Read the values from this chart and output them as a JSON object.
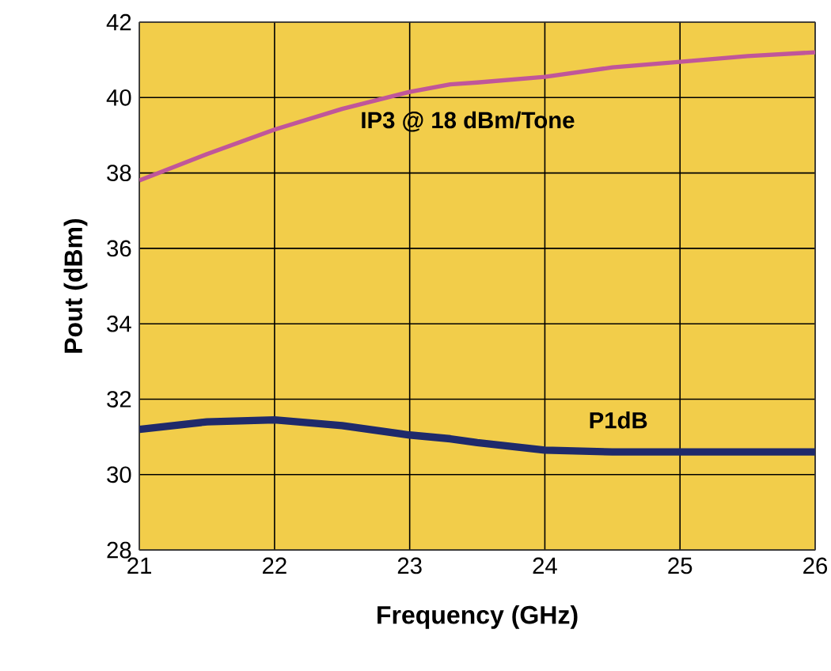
{
  "chart_data": {
    "type": "line",
    "xlabel": "Frequency (GHz)",
    "ylabel": "Pout (dBm)",
    "xlim": [
      21,
      26
    ],
    "ylim": [
      28,
      42
    ],
    "xticks": [
      21,
      22,
      23,
      24,
      25,
      26
    ],
    "yticks": [
      28,
      30,
      32,
      34,
      36,
      38,
      40,
      42
    ],
    "grid": true,
    "marker": "none",
    "line_style": "solid",
    "x": [
      21,
      21.5,
      22,
      22.5,
      23,
      23.3,
      23.5,
      24,
      24.5,
      25,
      25.5,
      26
    ],
    "series": [
      {
        "name": "IP3 @ 18 dBm/Tone",
        "color": "#c0569a",
        "values": [
          37.8,
          38.5,
          39.15,
          39.7,
          40.15,
          40.35,
          40.4,
          40.55,
          40.8,
          40.95,
          41.1,
          41.2
        ]
      },
      {
        "name": "P1dB",
        "color": "#1f2a6b",
        "values": [
          31.2,
          31.4,
          31.45,
          31.3,
          31.05,
          30.95,
          30.85,
          30.65,
          30.6,
          30.6,
          30.6,
          30.6
        ]
      }
    ]
  }
}
